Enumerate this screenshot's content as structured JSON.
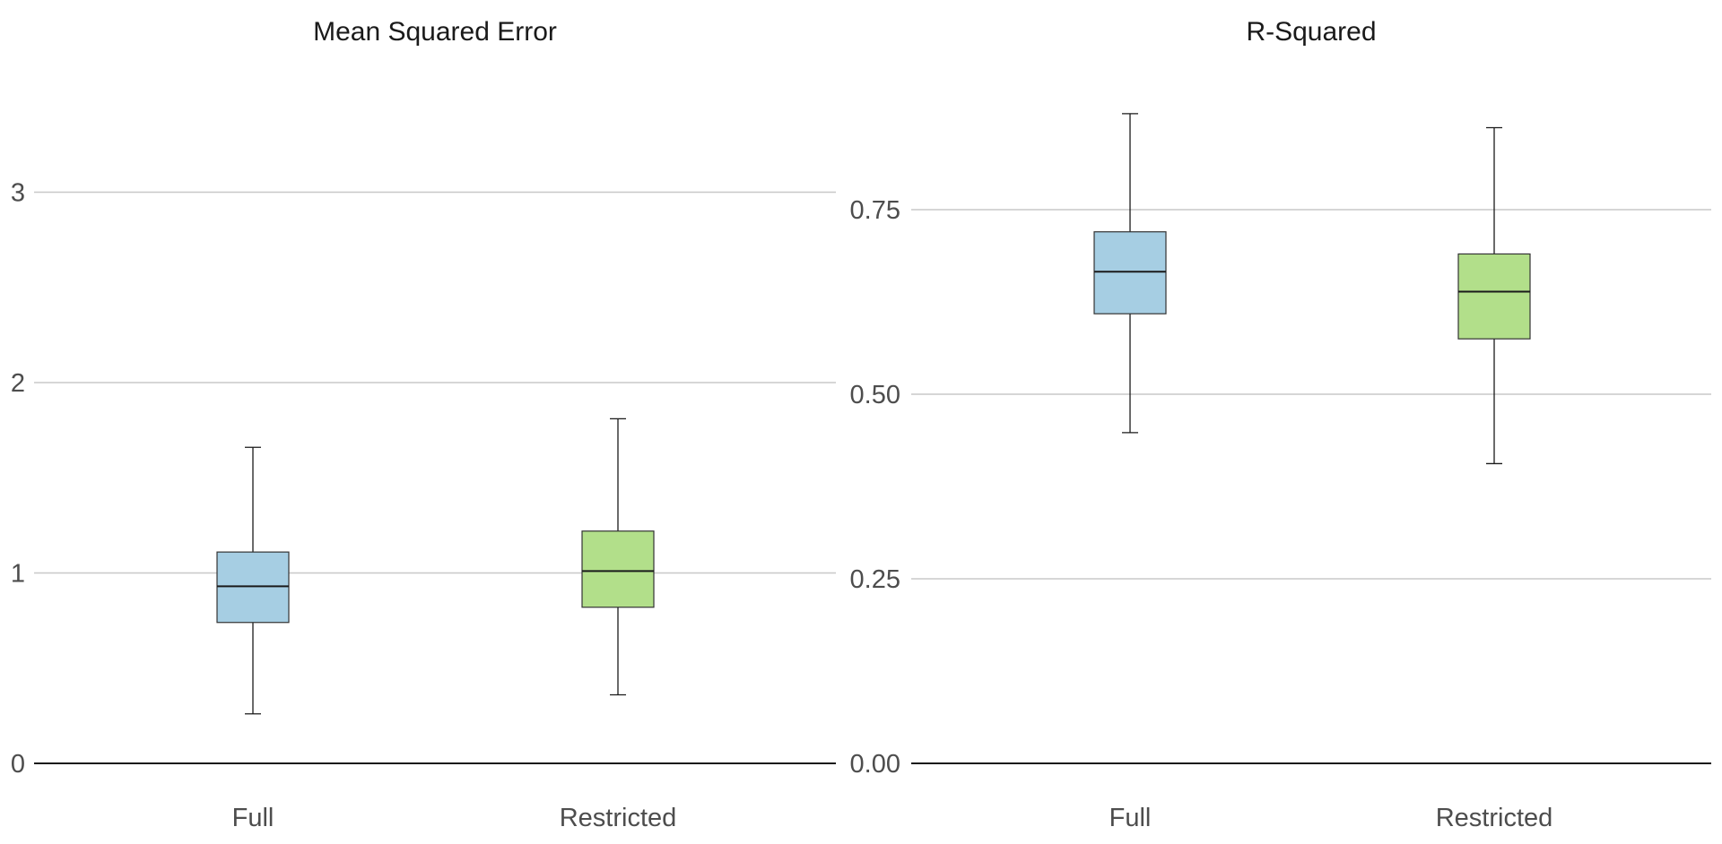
{
  "chart_data": [
    {
      "type": "box",
      "title": "Mean Squared Error",
      "ylim": [
        0,
        3.4
      ],
      "yticks": [
        0,
        1,
        2,
        3
      ],
      "ytick_labels": [
        "0",
        "1",
        "2",
        "3"
      ],
      "grid": true,
      "categories": [
        "Full",
        "Restricted"
      ],
      "boxes": [
        {
          "category": "Full",
          "min": 0.26,
          "q1": 0.74,
          "median": 0.93,
          "q3": 1.11,
          "max": 1.66,
          "color": "#a6cee3"
        },
        {
          "category": "Restricted",
          "min": 0.36,
          "q1": 0.82,
          "median": 1.01,
          "q3": 1.22,
          "max": 1.81,
          "color": "#b2df8a"
        }
      ]
    },
    {
      "type": "box",
      "title": "R-Squared",
      "ylim": [
        0,
        0.85
      ],
      "yticks": [
        0,
        0.25,
        0.5,
        0.75
      ],
      "ytick_labels": [
        "0.00",
        "0.25",
        "0.50",
        "0.75"
      ],
      "grid": true,
      "categories": [
        "Full",
        "Restricted"
      ],
      "boxes": [
        {
          "category": "Full",
          "min": 0.448,
          "q1": 0.609,
          "median": 0.666,
          "q3": 0.72,
          "max": 0.88,
          "color": "#a6cee3"
        },
        {
          "category": "Restricted",
          "min": 0.406,
          "q1": 0.575,
          "median": 0.639,
          "q3": 0.69,
          "max": 0.861,
          "color": "#b2df8a"
        }
      ]
    }
  ]
}
